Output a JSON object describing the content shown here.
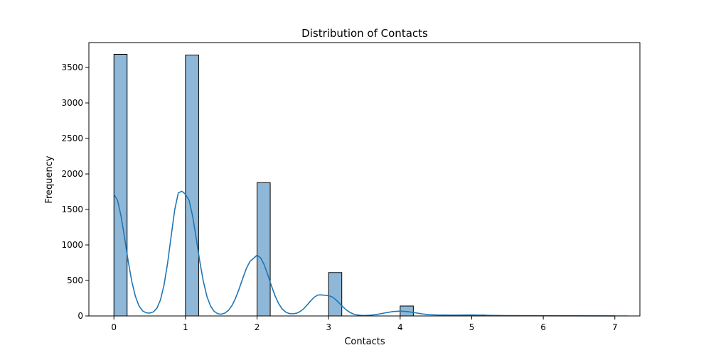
{
  "chart_data": {
    "type": "bar",
    "title": "Distribution of Contacts",
    "xlabel": "Contacts",
    "ylabel": "Frequency",
    "xlim": [
      -0.35,
      7.35
    ],
    "ylim": [
      0,
      3850
    ],
    "xticks": [
      "0",
      "1",
      "2",
      "3",
      "4",
      "5",
      "6",
      "7"
    ],
    "yticks": [
      "0",
      "500",
      "1000",
      "1500",
      "2000",
      "2500",
      "3000",
      "3500"
    ],
    "bin_width": 0.1842,
    "bars": [
      {
        "x": 0,
        "value": 3685
      },
      {
        "x": 1,
        "value": 3675
      },
      {
        "x": 2,
        "value": 1878
      },
      {
        "x": 3,
        "value": 612
      },
      {
        "x": 4,
        "value": 140
      },
      {
        "x": 5,
        "value": 15
      },
      {
        "x": 6,
        "value": 3
      },
      {
        "x": 7,
        "value": 1
      }
    ],
    "kde": {
      "x": [
        0,
        0.05,
        0.1,
        0.15,
        0.2,
        0.25,
        0.3,
        0.35,
        0.4,
        0.45,
        0.5,
        0.55,
        0.6,
        0.65,
        0.7,
        0.75,
        0.8,
        0.85,
        0.9,
        0.95,
        1.0,
        1.05,
        1.1,
        1.15,
        1.2,
        1.25,
        1.3,
        1.35,
        1.4,
        1.45,
        1.5,
        1.55,
        1.6,
        1.65,
        1.7,
        1.75,
        1.8,
        1.85,
        1.9,
        1.95,
        2.0,
        2.05,
        2.1,
        2.15,
        2.2,
        2.25,
        2.3,
        2.35,
        2.4,
        2.45,
        2.5,
        2.55,
        2.6,
        2.65,
        2.7,
        2.75,
        2.8,
        2.85,
        2.9,
        2.95,
        3.0,
        3.05,
        3.1,
        3.15,
        3.2,
        3.25,
        3.3,
        3.35,
        3.4,
        3.45,
        3.5,
        3.6,
        3.7,
        3.8,
        3.9,
        4.0,
        4.1,
        4.2,
        4.3,
        4.4,
        4.5,
        4.75,
        5.0,
        5.25,
        5.5,
        6.0,
        6.5,
        7.0
      ],
      "y": [
        1714,
        1630,
        1404,
        1094,
        768,
        485,
        276,
        143,
        72,
        44,
        40,
        56,
        108,
        226,
        434,
        743,
        1126,
        1498,
        1735,
        1756,
        1714,
        1630,
        1404,
        1094,
        768,
        484,
        274,
        140,
        66,
        31,
        25,
        40,
        78,
        147,
        250,
        382,
        529,
        666,
        767,
        810,
        856,
        818,
        721,
        580,
        428,
        288,
        177,
        100,
        55,
        34,
        30,
        38,
        61,
        100,
        154,
        213,
        265,
        295,
        297,
        290,
        285,
        269,
        230,
        180,
        128,
        83,
        49,
        26,
        14,
        8,
        6,
        12,
        26,
        45,
        62,
        68,
        62,
        47,
        30,
        18,
        14,
        12,
        14,
        8,
        5,
        3,
        2,
        1
      ]
    },
    "colors": {
      "bar_fill": "#8fb8d8",
      "bar_edge": "#000000",
      "kde_line": "#1f77b4"
    },
    "grid": false,
    "legend": "none"
  }
}
